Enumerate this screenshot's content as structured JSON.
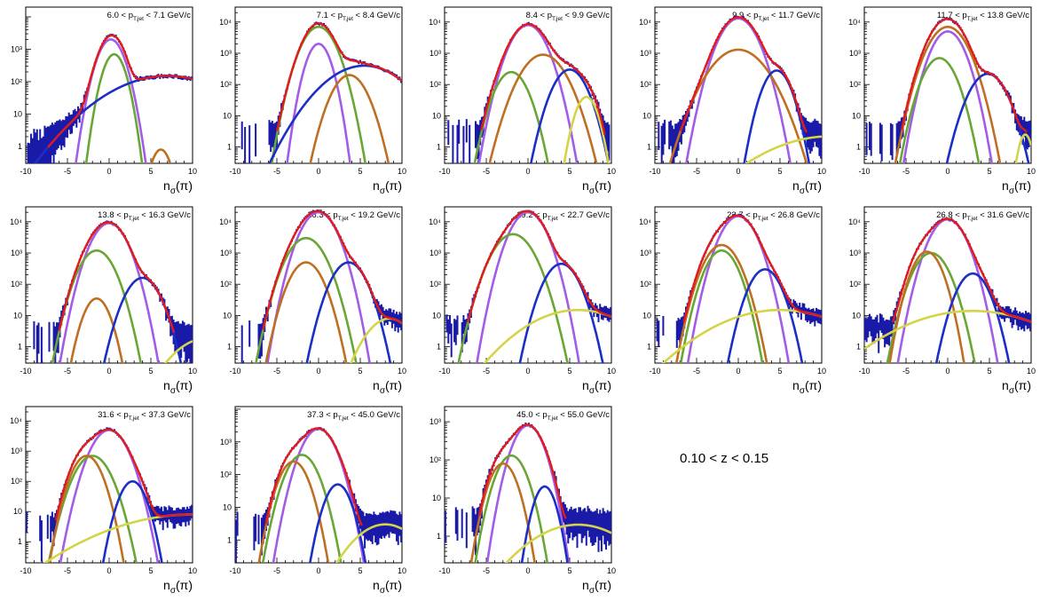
{
  "colors": {
    "data": "#1a1aa8",
    "total_fit": "#e11a1a",
    "pion": "#a25ce6",
    "kaon": "#6aa636",
    "proton": "#bf6f21",
    "electron": "#1b2fc7",
    "deuteron": "#d4d448"
  },
  "annotation": "0.10 < z < 0.15",
  "chart_data": [
    {
      "type": "line",
      "title": "6.0 < p_T,jet < 7.1 GeV/c",
      "xlabel": "nσ(π)",
      "xlim": [
        -10,
        10
      ],
      "xticks": [
        -10,
        -5,
        0,
        5,
        10
      ],
      "yscale": "log",
      "ylim": [
        0.3,
        20000
      ],
      "yticks": [
        1,
        10,
        100,
        1000
      ],
      "yticklabels": [
        "1",
        "10",
        "10²",
        "10³"
      ],
      "noise_cutoff": 0.6,
      "series": [
        {
          "component": "pion",
          "amp": 2000,
          "mu": 0.2,
          "sigma": 1.0
        },
        {
          "component": "kaon",
          "amp": 700,
          "mu": 0.6,
          "sigma": 0.85
        },
        {
          "component": "proton",
          "amp": 0.8,
          "mu": 6.2,
          "sigma": 0.8
        },
        {
          "component": "electron",
          "amp": 150,
          "mu": 7.0,
          "sigma": 4.5
        }
      ]
    },
    {
      "type": "line",
      "title": "7.1 < p_T,jet < 8.4 GeV/c",
      "xlabel": "nσ(π)",
      "xlim": [
        -10,
        10
      ],
      "xticks": [
        -10,
        -5,
        0,
        5,
        10
      ],
      "yscale": "log",
      "ylim": [
        0.3,
        30000
      ],
      "yticks": [
        1,
        10,
        100,
        1000,
        10000
      ],
      "yticklabels": [
        "1",
        "10",
        "10²",
        "10³",
        "10⁴"
      ],
      "noise_cutoff": 2,
      "series": [
        {
          "component": "pion",
          "amp": 2000,
          "mu": 0.0,
          "sigma": 0.9
        },
        {
          "component": "kaon",
          "amp": 7000,
          "mu": 0.0,
          "sigma": 1.25
        },
        {
          "component": "proton",
          "amp": 200,
          "mu": 3.7,
          "sigma": 1.3
        },
        {
          "component": "electron",
          "amp": 400,
          "mu": 5.5,
          "sigma": 3.0
        }
      ]
    },
    {
      "type": "line",
      "title": "8.4 < p_T,jet < 9.9 GeV/c",
      "xlabel": "nσ(π)",
      "xlim": [
        -10,
        10
      ],
      "xticks": [
        -10,
        -5,
        0,
        5,
        10
      ],
      "yscale": "log",
      "ylim": [
        0.3,
        30000
      ],
      "yticks": [
        1,
        10,
        100,
        1000,
        10000
      ],
      "yticklabels": [
        "1",
        "10",
        "10²",
        "10³",
        "10⁴"
      ],
      "noise_cutoff": 2,
      "series": [
        {
          "component": "pion",
          "amp": 8000,
          "mu": 0.0,
          "sigma": 1.3
        },
        {
          "component": "kaon",
          "amp": 250,
          "mu": -2.0,
          "sigma": 1.2
        },
        {
          "component": "proton",
          "amp": 900,
          "mu": 1.8,
          "sigma": 1.6
        },
        {
          "component": "electron",
          "amp": 300,
          "mu": 5.0,
          "sigma": 1.25
        },
        {
          "component": "deuteron",
          "amp": 40,
          "mu": 7.0,
          "sigma": 0.85
        }
      ]
    },
    {
      "type": "line",
      "title": "9.9 < p_T,jet < 11.7 GeV/c",
      "xlabel": "nσ(π)",
      "xlim": [
        -10,
        10
      ],
      "xticks": [
        -10,
        -5,
        0,
        5,
        10
      ],
      "yscale": "log",
      "ylim": [
        0.3,
        30000
      ],
      "yticks": [
        1,
        10,
        100,
        1000,
        10000
      ],
      "yticklabels": [
        "1",
        "10",
        "10²",
        "10³",
        "10⁴"
      ],
      "noise_cutoff": 2,
      "series": [
        {
          "component": "pion",
          "amp": 13000,
          "mu": 0.0,
          "sigma": 1.35
        },
        {
          "component": "proton",
          "amp": 1300,
          "mu": 0.0,
          "sigma": 2.0
        },
        {
          "component": "electron",
          "amp": 280,
          "mu": 4.6,
          "sigma": 1.05
        },
        {
          "component": "deuteron",
          "amp": 2.2,
          "mu": 11.0,
          "sigma": 5.0
        }
      ]
    },
    {
      "type": "line",
      "title": "11.7 < p_T,jet < 13.8 GeV/c",
      "xlabel": "nσ(π)",
      "xlim": [
        -10,
        10
      ],
      "xticks": [
        -10,
        -5,
        0,
        5,
        10
      ],
      "yscale": "log",
      "ylim": [
        0.3,
        30000
      ],
      "yticks": [
        1,
        10,
        100,
        1000,
        10000
      ],
      "yticklabels": [
        "1",
        "10",
        "10²",
        "10³",
        "10⁴"
      ],
      "noise_cutoff": 2,
      "series": [
        {
          "component": "pion",
          "amp": 5000,
          "mu": 0.0,
          "sigma": 1.2
        },
        {
          "component": "kaon",
          "amp": 700,
          "mu": -1.0,
          "sigma": 1.2
        },
        {
          "component": "proton",
          "amp": 7000,
          "mu": 0.0,
          "sigma": 1.4
        },
        {
          "component": "electron",
          "amp": 220,
          "mu": 4.8,
          "sigma": 1.35
        },
        {
          "component": "deuteron",
          "amp": 2.5,
          "mu": 9.3,
          "sigma": 0.55
        }
      ]
    },
    {
      "type": "line",
      "title": "13.8 < p_T,jet < 16.3 GeV/c",
      "xlabel": "nσ(π)",
      "xlim": [
        -10,
        10
      ],
      "xticks": [
        -10,
        -5,
        0,
        5,
        10
      ],
      "yscale": "log",
      "ylim": [
        0.3,
        30000
      ],
      "yticks": [
        1,
        10,
        100,
        1000,
        10000
      ],
      "yticklabels": [
        "1",
        "10",
        "10²",
        "10³",
        "10⁴"
      ],
      "noise_cutoff": 2,
      "series": [
        {
          "component": "pion",
          "amp": 9000,
          "mu": 0.0,
          "sigma": 1.3
        },
        {
          "component": "kaon",
          "amp": 1200,
          "mu": -1.5,
          "sigma": 1.3
        },
        {
          "component": "proton",
          "amp": 35,
          "mu": -1.5,
          "sigma": 1.0
        },
        {
          "component": "electron",
          "amp": 160,
          "mu": 4.0,
          "sigma": 1.3
        },
        {
          "component": "deuteron",
          "amp": 1.8,
          "mu": 11.5,
          "sigma": 2.5
        }
      ]
    },
    {
      "type": "line",
      "title": "16.3 < p_T,jet < 19.2 GeV/c",
      "xlabel": "nσ(π)",
      "xlim": [
        -10,
        10
      ],
      "xticks": [
        -10,
        -5,
        0,
        5,
        10
      ],
      "yscale": "log",
      "ylim": [
        0.3,
        30000
      ],
      "yticks": [
        1,
        10,
        100,
        1000,
        10000
      ],
      "yticklabels": [
        "1",
        "10",
        "10²",
        "10³",
        "10⁴"
      ],
      "noise_cutoff": 2,
      "series": [
        {
          "component": "pion",
          "amp": 20000,
          "mu": 0.0,
          "sigma": 1.3
        },
        {
          "component": "kaon",
          "amp": 3000,
          "mu": -1.5,
          "sigma": 1.4
        },
        {
          "component": "proton",
          "amp": 500,
          "mu": -1.5,
          "sigma": 1.25
        },
        {
          "component": "electron",
          "amp": 500,
          "mu": 3.6,
          "sigma": 1.3
        },
        {
          "component": "deuteron",
          "amp": 8,
          "mu": 8.5,
          "sigma": 1.8
        }
      ]
    },
    {
      "type": "line",
      "title": "19.2 < p_T,jet < 22.7 GeV/c",
      "xlabel": "nσ(π)",
      "xlim": [
        -10,
        10
      ],
      "xticks": [
        -10,
        -5,
        0,
        5,
        10
      ],
      "yscale": "log",
      "ylim": [
        0.3,
        30000
      ],
      "yticks": [
        1,
        10,
        100,
        1000,
        10000
      ],
      "yticklabels": [
        "1",
        "10",
        "10²",
        "10³",
        "10⁴"
      ],
      "noise_cutoff": 4,
      "series": [
        {
          "component": "pion",
          "amp": 20000,
          "mu": 0.0,
          "sigma": 1.3
        },
        {
          "component": "kaon",
          "amp": 4000,
          "mu": -1.8,
          "sigma": 1.5
        },
        {
          "component": "electron",
          "amp": 450,
          "mu": 4.0,
          "sigma": 1.3
        },
        {
          "component": "deuteron",
          "amp": 15,
          "mu": 6.0,
          "sigma": 4.0
        }
      ]
    },
    {
      "type": "line",
      "title": "22.7 < p_T,jet < 26.8 GeV/c",
      "xlabel": "nσ(π)",
      "xlim": [
        -10,
        10
      ],
      "xticks": [
        -10,
        -5,
        0,
        5,
        10
      ],
      "yscale": "log",
      "ylim": [
        0.3,
        30000
      ],
      "yticks": [
        1,
        10,
        100,
        1000,
        10000
      ],
      "yticklabels": [
        "1",
        "10",
        "10²",
        "10³",
        "10⁴"
      ],
      "noise_cutoff": 4,
      "series": [
        {
          "component": "pion",
          "amp": 15000,
          "mu": 0.0,
          "sigma": 1.3
        },
        {
          "component": "kaon",
          "amp": 1200,
          "mu": -2.0,
          "sigma": 1.2
        },
        {
          "component": "proton",
          "amp": 1800,
          "mu": -2.0,
          "sigma": 1.3
        },
        {
          "component": "electron",
          "amp": 300,
          "mu": 3.2,
          "sigma": 1.2
        },
        {
          "component": "deuteron",
          "amp": 15,
          "mu": 5.0,
          "sigma": 5.0
        }
      ]
    },
    {
      "type": "line",
      "title": "26.8 < p_T,jet < 31.6 GeV/c",
      "xlabel": "nσ(π)",
      "xlim": [
        -10,
        10
      ],
      "xticks": [
        -10,
        -5,
        0,
        5,
        10
      ],
      "yscale": "log",
      "ylim": [
        0.3,
        30000
      ],
      "yticks": [
        1,
        10,
        100,
        1000,
        10000
      ],
      "yticklabels": [
        "1",
        "10",
        "10²",
        "10³",
        "10⁴"
      ],
      "noise_cutoff": 4,
      "series": [
        {
          "component": "pion",
          "amp": 12000,
          "mu": 0.0,
          "sigma": 1.3
        },
        {
          "component": "kaon",
          "amp": 1000,
          "mu": -2.0,
          "sigma": 1.3
        },
        {
          "component": "proton",
          "amp": 1100,
          "mu": -2.5,
          "sigma": 1.1
        },
        {
          "component": "electron",
          "amp": 220,
          "mu": 3.0,
          "sigma": 1.2
        },
        {
          "component": "deuteron",
          "amp": 14,
          "mu": 3.0,
          "sigma": 5.5
        }
      ]
    },
    {
      "type": "line",
      "title": "31.6 < p_T,jet < 37.3 GeV/c",
      "xlabel": "nσ(π)",
      "xlim": [
        -10,
        10
      ],
      "xticks": [
        -10,
        -5,
        0,
        5,
        10
      ],
      "yscale": "log",
      "ylim": [
        0.2,
        30000
      ],
      "yticks": [
        1,
        10,
        100,
        1000,
        10000
      ],
      "yticklabels": [
        "1",
        "10",
        "10²",
        "10³",
        "10⁴"
      ],
      "noise_cutoff": 3,
      "series": [
        {
          "component": "pion",
          "amp": 5000,
          "mu": 0.0,
          "sigma": 1.3
        },
        {
          "component": "kaon",
          "amp": 700,
          "mu": -2.0,
          "sigma": 1.3
        },
        {
          "component": "proton",
          "amp": 700,
          "mu": -2.7,
          "sigma": 1.1
        },
        {
          "component": "electron",
          "amp": 100,
          "mu": 2.8,
          "sigma": 1.0
        },
        {
          "component": "deuteron",
          "amp": 8,
          "mu": 10.0,
          "sigma": 6.5
        }
      ]
    },
    {
      "type": "line",
      "title": "37.3 < p_T,jet < 45.0 GeV/c",
      "xlabel": "nσ(π)",
      "xlim": [
        -10,
        10
      ],
      "xticks": [
        -10,
        -5,
        0,
        5,
        10
      ],
      "yscale": "log",
      "ylim": [
        0.2,
        12000
      ],
      "yticks": [
        1,
        10,
        100,
        1000
      ],
      "yticklabels": [
        "1",
        "10",
        "10²",
        "10³"
      ],
      "noise_cutoff": 2,
      "series": [
        {
          "component": "pion",
          "amp": 2500,
          "mu": 0.0,
          "sigma": 1.25
        },
        {
          "component": "kaon",
          "amp": 400,
          "mu": -2.0,
          "sigma": 1.2
        },
        {
          "component": "proton",
          "amp": 250,
          "mu": -3.0,
          "sigma": 1.1
        },
        {
          "component": "electron",
          "amp": 50,
          "mu": 2.3,
          "sigma": 1.0
        },
        {
          "component": "deuteron",
          "amp": 3,
          "mu": 8.0,
          "sigma": 2.5
        }
      ]
    },
    {
      "type": "line",
      "title": "45.0 < p_T,jet < 55.0 GeV/c",
      "xlabel": "nσ(π)",
      "xlim": [
        -10,
        10
      ],
      "xticks": [
        -10,
        -5,
        0,
        5,
        10
      ],
      "yscale": "log",
      "ylim": [
        0.2,
        2500
      ],
      "yticks": [
        1,
        10,
        100,
        1000
      ],
      "yticklabels": [
        "1",
        "10",
        "10²",
        "10³"
      ],
      "noise_cutoff": 2,
      "series": [
        {
          "component": "pion",
          "amp": 800,
          "mu": 0.0,
          "sigma": 1.2
        },
        {
          "component": "kaon",
          "amp": 130,
          "mu": -2.0,
          "sigma": 1.2
        },
        {
          "component": "proton",
          "amp": 80,
          "mu": -3.0,
          "sigma": 1.1
        },
        {
          "component": "electron",
          "amp": 20,
          "mu": 2.0,
          "sigma": 0.9
        },
        {
          "component": "deuteron",
          "amp": 2,
          "mu": 6.0,
          "sigma": 4.0
        }
      ]
    }
  ]
}
